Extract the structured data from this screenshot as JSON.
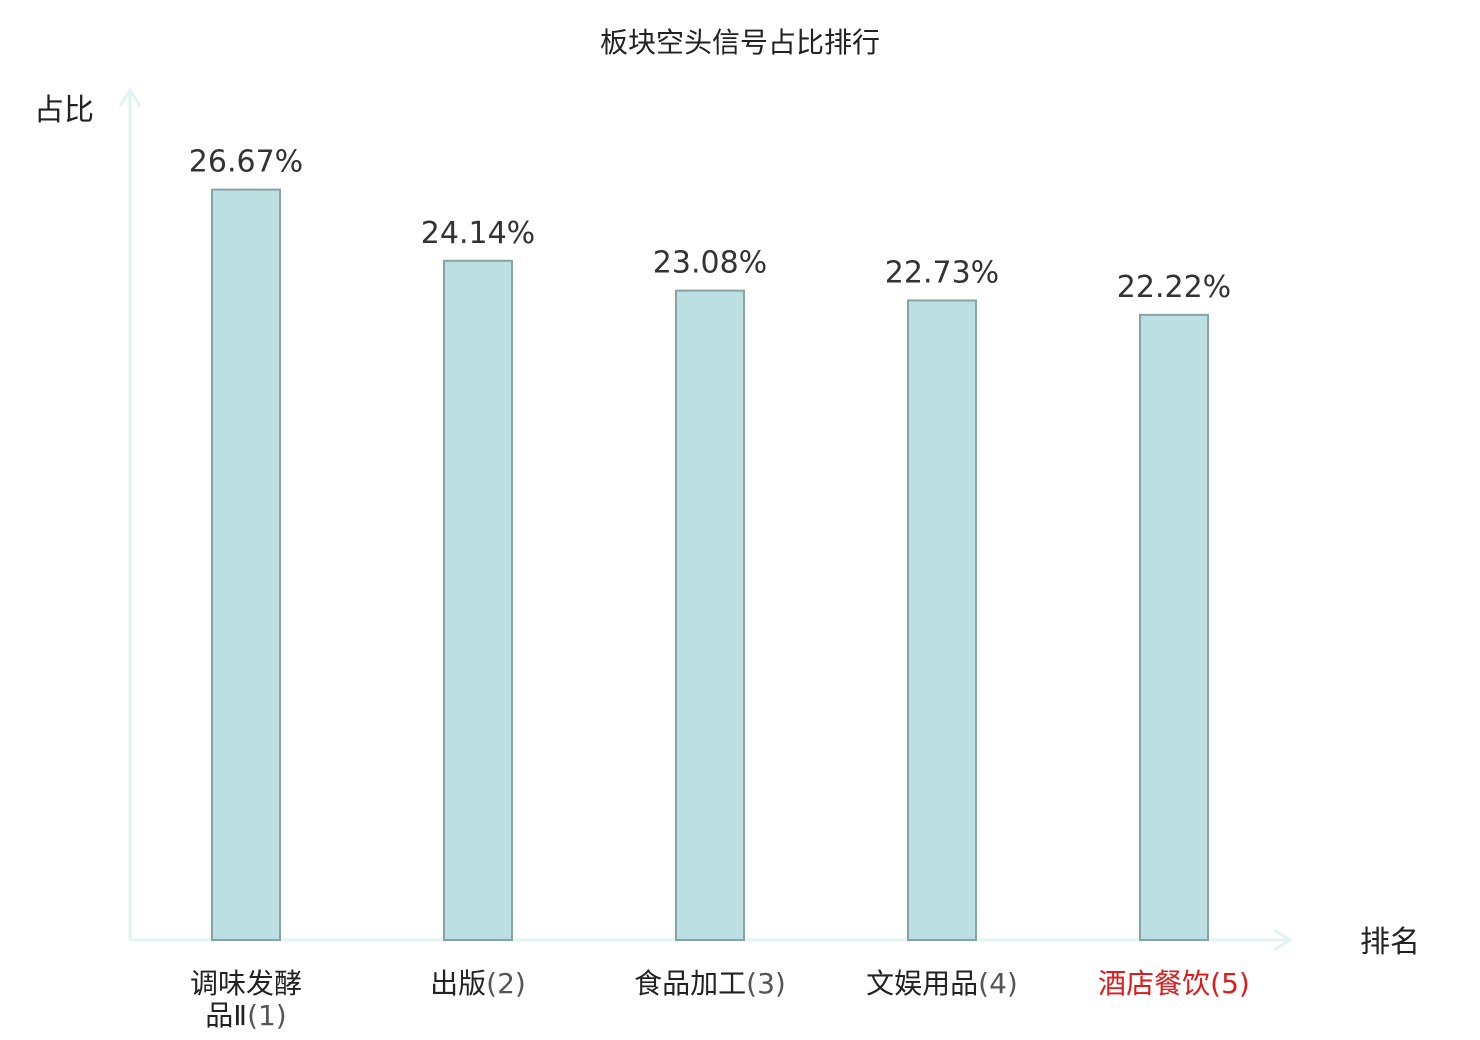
{
  "chart_data": {
    "type": "bar",
    "title": "板块空头信号占比排行",
    "ylabel": "占比",
    "xlabel": "排名",
    "categories": [
      {
        "name_lines": [
          "调味发酵",
          "品Ⅱ"
        ],
        "rank": "(1)",
        "highlight": false
      },
      {
        "name_lines": [
          "出版"
        ],
        "rank": "(2)",
        "highlight": false
      },
      {
        "name_lines": [
          "食品加工"
        ],
        "rank": "(3)",
        "highlight": false
      },
      {
        "name_lines": [
          "文娱用品"
        ],
        "rank": "(4)",
        "highlight": false
      },
      {
        "name_lines": [
          "酒店餐饮"
        ],
        "rank": "(5)",
        "highlight": true
      }
    ],
    "values": [
      26.67,
      24.14,
      23.08,
      22.73,
      22.22
    ],
    "value_labels": [
      "26.67%",
      "24.14%",
      "23.08%",
      "22.73%",
      "22.22%"
    ],
    "ylim": [
      0,
      29.5
    ],
    "grid": false,
    "legend": "none"
  },
  "colors": {
    "bar_fill": "#bce0e1",
    "bar_stroke": "#87a3a4",
    "axis": "#e2f3f1",
    "highlight": "#e0191b"
  }
}
